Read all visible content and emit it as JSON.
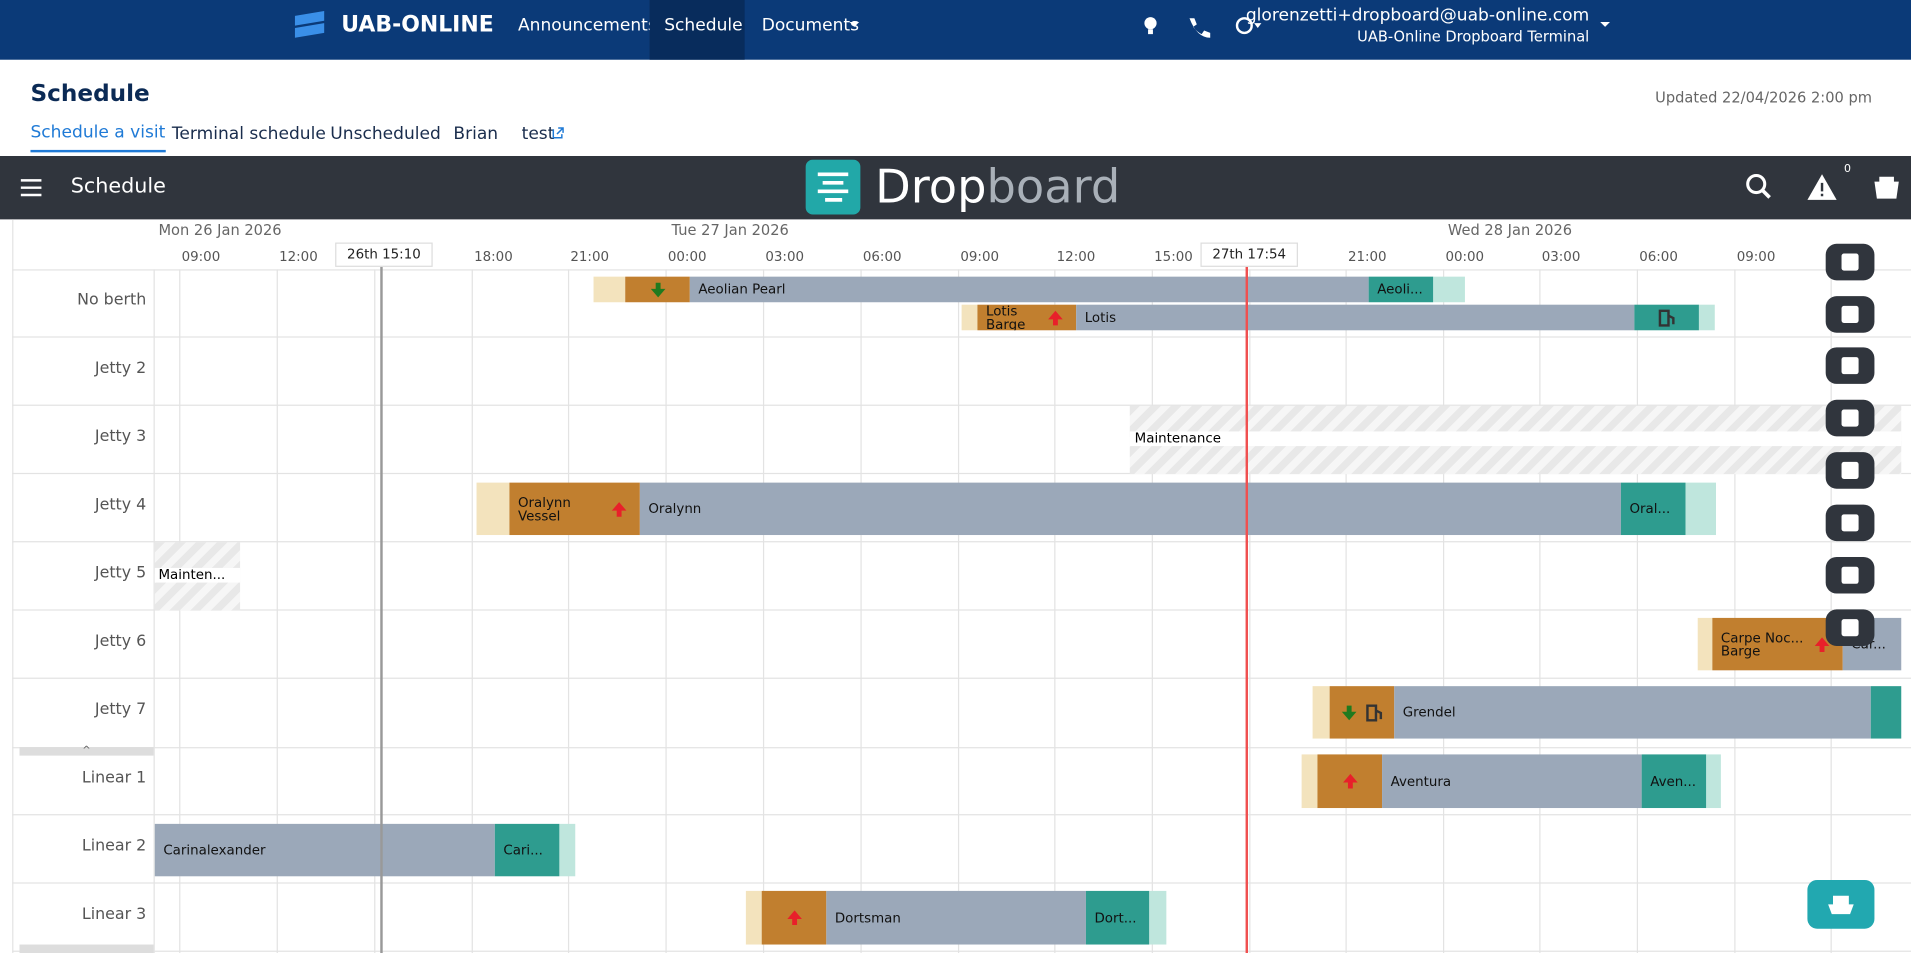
{
  "nav": {
    "brand": "UAB-ONLINE",
    "links": [
      "Announcements",
      "Schedule",
      "Documents"
    ],
    "user_email": "glorenzetti+dropboard@uab-online.com",
    "user_terminal": "UAB-Online Dropboard Terminal"
  },
  "header": {
    "title": "Schedule",
    "updated": "Updated 22/04/2026 2:00 pm",
    "tabs": [
      "Schedule a visit",
      "Terminal schedule",
      "Unscheduled",
      "Brian",
      "test"
    ]
  },
  "app_bar": {
    "title": "Schedule",
    "logo_prefix": "Drop",
    "logo_suffix": "board",
    "alert_count": "0"
  },
  "timeline": {
    "dates": [
      "Mon 26 Jan 2026",
      "Tue 27 Jan 2026",
      "Wed 28 Jan 2026"
    ],
    "hours": [
      "09:00",
      "12:00",
      "18:00",
      "21:00",
      "00:00",
      "03:00",
      "06:00",
      "09:00",
      "12:00",
      "15:00",
      "21:00",
      "00:00",
      "03:00",
      "06:00",
      "09:00"
    ],
    "markers": [
      "26th 15:10",
      "27th 17:54"
    ]
  },
  "rows": [
    "No berth",
    "Jetty 2",
    "Jetty 3",
    "Jetty 4",
    "Jetty 5",
    "Jetty 6",
    "Jetty 7",
    "Linear 1",
    "Linear 2",
    "Linear 3"
  ],
  "bars": [
    "Aeolian Pearl",
    "Aeoli...",
    "Lotis\nBarge",
    "Lotis",
    "Oralynn\nVessel",
    "Oralynn",
    "Oral...",
    "Carpe Noc...\nBarge",
    "Car...",
    "Grendel",
    "Aventura",
    "Aven...",
    "Carinalexander",
    "Cari...",
    "Dortsman",
    "Dort..."
  ],
  "maintenance": [
    "Maintenance",
    "Mainten..."
  ]
}
